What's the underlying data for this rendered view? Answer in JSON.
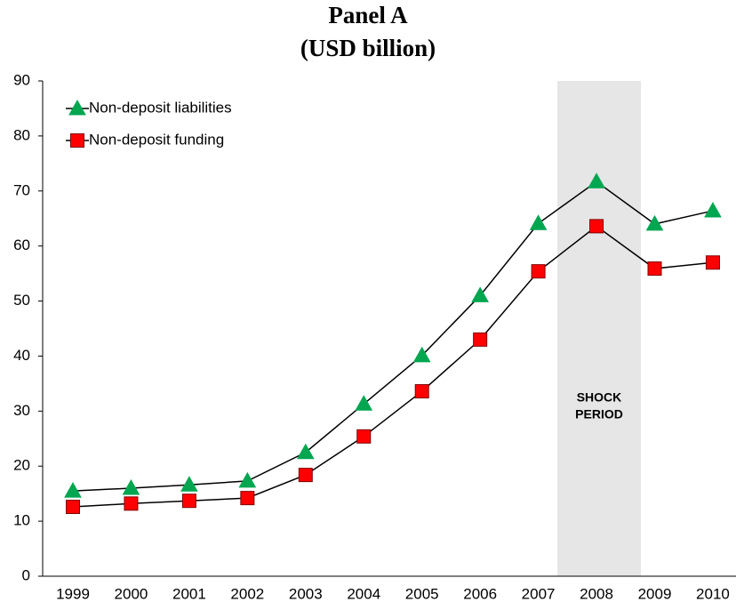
{
  "chart_data": {
    "type": "line",
    "title": [
      "Panel A",
      "(USD billion)"
    ],
    "categories": [
      "1999",
      "2000",
      "2001",
      "2002",
      "2003",
      "2004",
      "2005",
      "2006",
      "2007",
      "2008",
      "2009",
      "2010"
    ],
    "series": [
      {
        "name": "Non-deposit liabilities",
        "color": "#00a650",
        "marker": "triangle",
        "values": [
          15.5,
          16.0,
          16.6,
          17.3,
          22.5,
          31.3,
          40.1,
          51.0,
          64.1,
          71.7,
          64.0,
          66.4
        ]
      },
      {
        "name": "Non-deposit funding",
        "color": "#ff0000",
        "marker": "square",
        "values": [
          12.6,
          13.2,
          13.7,
          14.2,
          18.4,
          25.4,
          33.6,
          43.0,
          55.4,
          63.6,
          55.9,
          57.0
        ]
      }
    ],
    "annotation": [
      "SHOCK",
      "PERIOD"
    ],
    "ylim": [
      0,
      90
    ],
    "yticks": [
      0,
      10,
      20,
      30,
      40,
      50,
      60,
      70,
      80,
      90
    ],
    "legend": "upper left"
  }
}
